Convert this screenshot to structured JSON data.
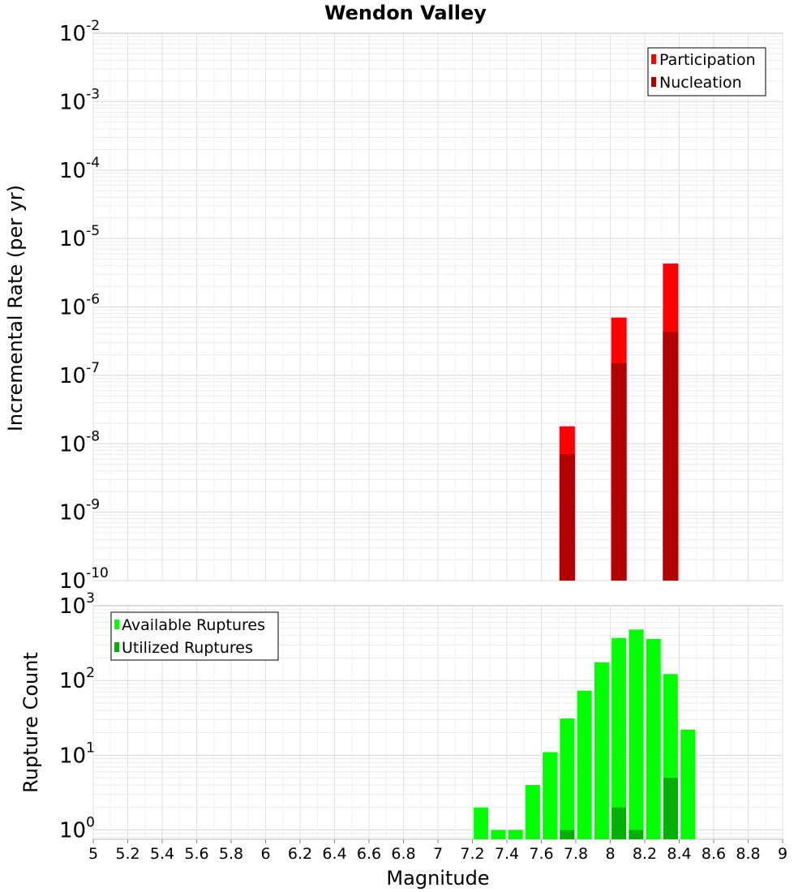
{
  "chart_data": [
    {
      "type": "bar",
      "title": "Wendon Valley",
      "xlabel": "",
      "ylabel": "Incremental Rate (per yr)",
      "yscale": "log",
      "ylim": [
        1e-10,
        0.01
      ],
      "xlim": [
        5,
        9
      ],
      "ytick_labels": [
        {
          "base": "10",
          "exp": "-10"
        },
        {
          "base": "10",
          "exp": "-9"
        },
        {
          "base": "10",
          "exp": "-8"
        },
        {
          "base": "10",
          "exp": "-7"
        },
        {
          "base": "10",
          "exp": "-6"
        },
        {
          "base": "10",
          "exp": "-5"
        },
        {
          "base": "10",
          "exp": "-4"
        },
        {
          "base": "10",
          "exp": "-3"
        },
        {
          "base": "10",
          "exp": "-2"
        }
      ],
      "legend_position": "top-right",
      "grid": true,
      "series": [
        {
          "name": "Participation",
          "color": "#ff0000",
          "points": [
            {
              "x": 7.75,
              "y": 1.8e-08
            },
            {
              "x": 8.05,
              "y": 7e-07
            },
            {
              "x": 8.35,
              "y": 4.3e-06
            }
          ]
        },
        {
          "name": "Nucleation",
          "color": "#b00000",
          "points": [
            {
              "x": 7.75,
              "y": 7e-09
            },
            {
              "x": 8.05,
              "y": 1.5e-07
            },
            {
              "x": 8.35,
              "y": 4.3e-07
            }
          ]
        }
      ]
    },
    {
      "type": "bar",
      "xlabel": "Magnitude",
      "ylabel": "Rupture Count",
      "yscale": "log",
      "ylim": [
        0.75,
        1000
      ],
      "xlim": [
        5,
        9
      ],
      "xticks": [
        "5",
        "5.2",
        "5.4",
        "5.6",
        "5.8",
        "6",
        "6.2",
        "6.4",
        "6.6",
        "6.8",
        "7",
        "7.2",
        "7.4",
        "7.6",
        "7.8",
        "8",
        "8.2",
        "8.4",
        "8.6",
        "8.8",
        "9"
      ],
      "ytick_labels": [
        {
          "base": "10",
          "exp": "0"
        },
        {
          "base": "10",
          "exp": "1"
        },
        {
          "base": "10",
          "exp": "2"
        },
        {
          "base": "10",
          "exp": "3"
        }
      ],
      "legend_position": "top-left",
      "grid": true,
      "series": [
        {
          "name": "Available Ruptures",
          "color": "#00ff00",
          "points": [
            {
              "x": 7.25,
              "y": 2
            },
            {
              "x": 7.35,
              "y": 1
            },
            {
              "x": 7.45,
              "y": 1
            },
            {
              "x": 7.55,
              "y": 4
            },
            {
              "x": 7.65,
              "y": 11
            },
            {
              "x": 7.75,
              "y": 31
            },
            {
              "x": 7.85,
              "y": 73
            },
            {
              "x": 7.95,
              "y": 175
            },
            {
              "x": 8.05,
              "y": 370
            },
            {
              "x": 8.15,
              "y": 480
            },
            {
              "x": 8.25,
              "y": 360
            },
            {
              "x": 8.35,
              "y": 122
            },
            {
              "x": 8.45,
              "y": 22
            }
          ]
        },
        {
          "name": "Utilized Ruptures",
          "color": "#00b000",
          "points": [
            {
              "x": 7.75,
              "y": 1
            },
            {
              "x": 8.05,
              "y": 2
            },
            {
              "x": 8.15,
              "y": 1
            },
            {
              "x": 8.35,
              "y": 5
            }
          ]
        }
      ]
    }
  ]
}
